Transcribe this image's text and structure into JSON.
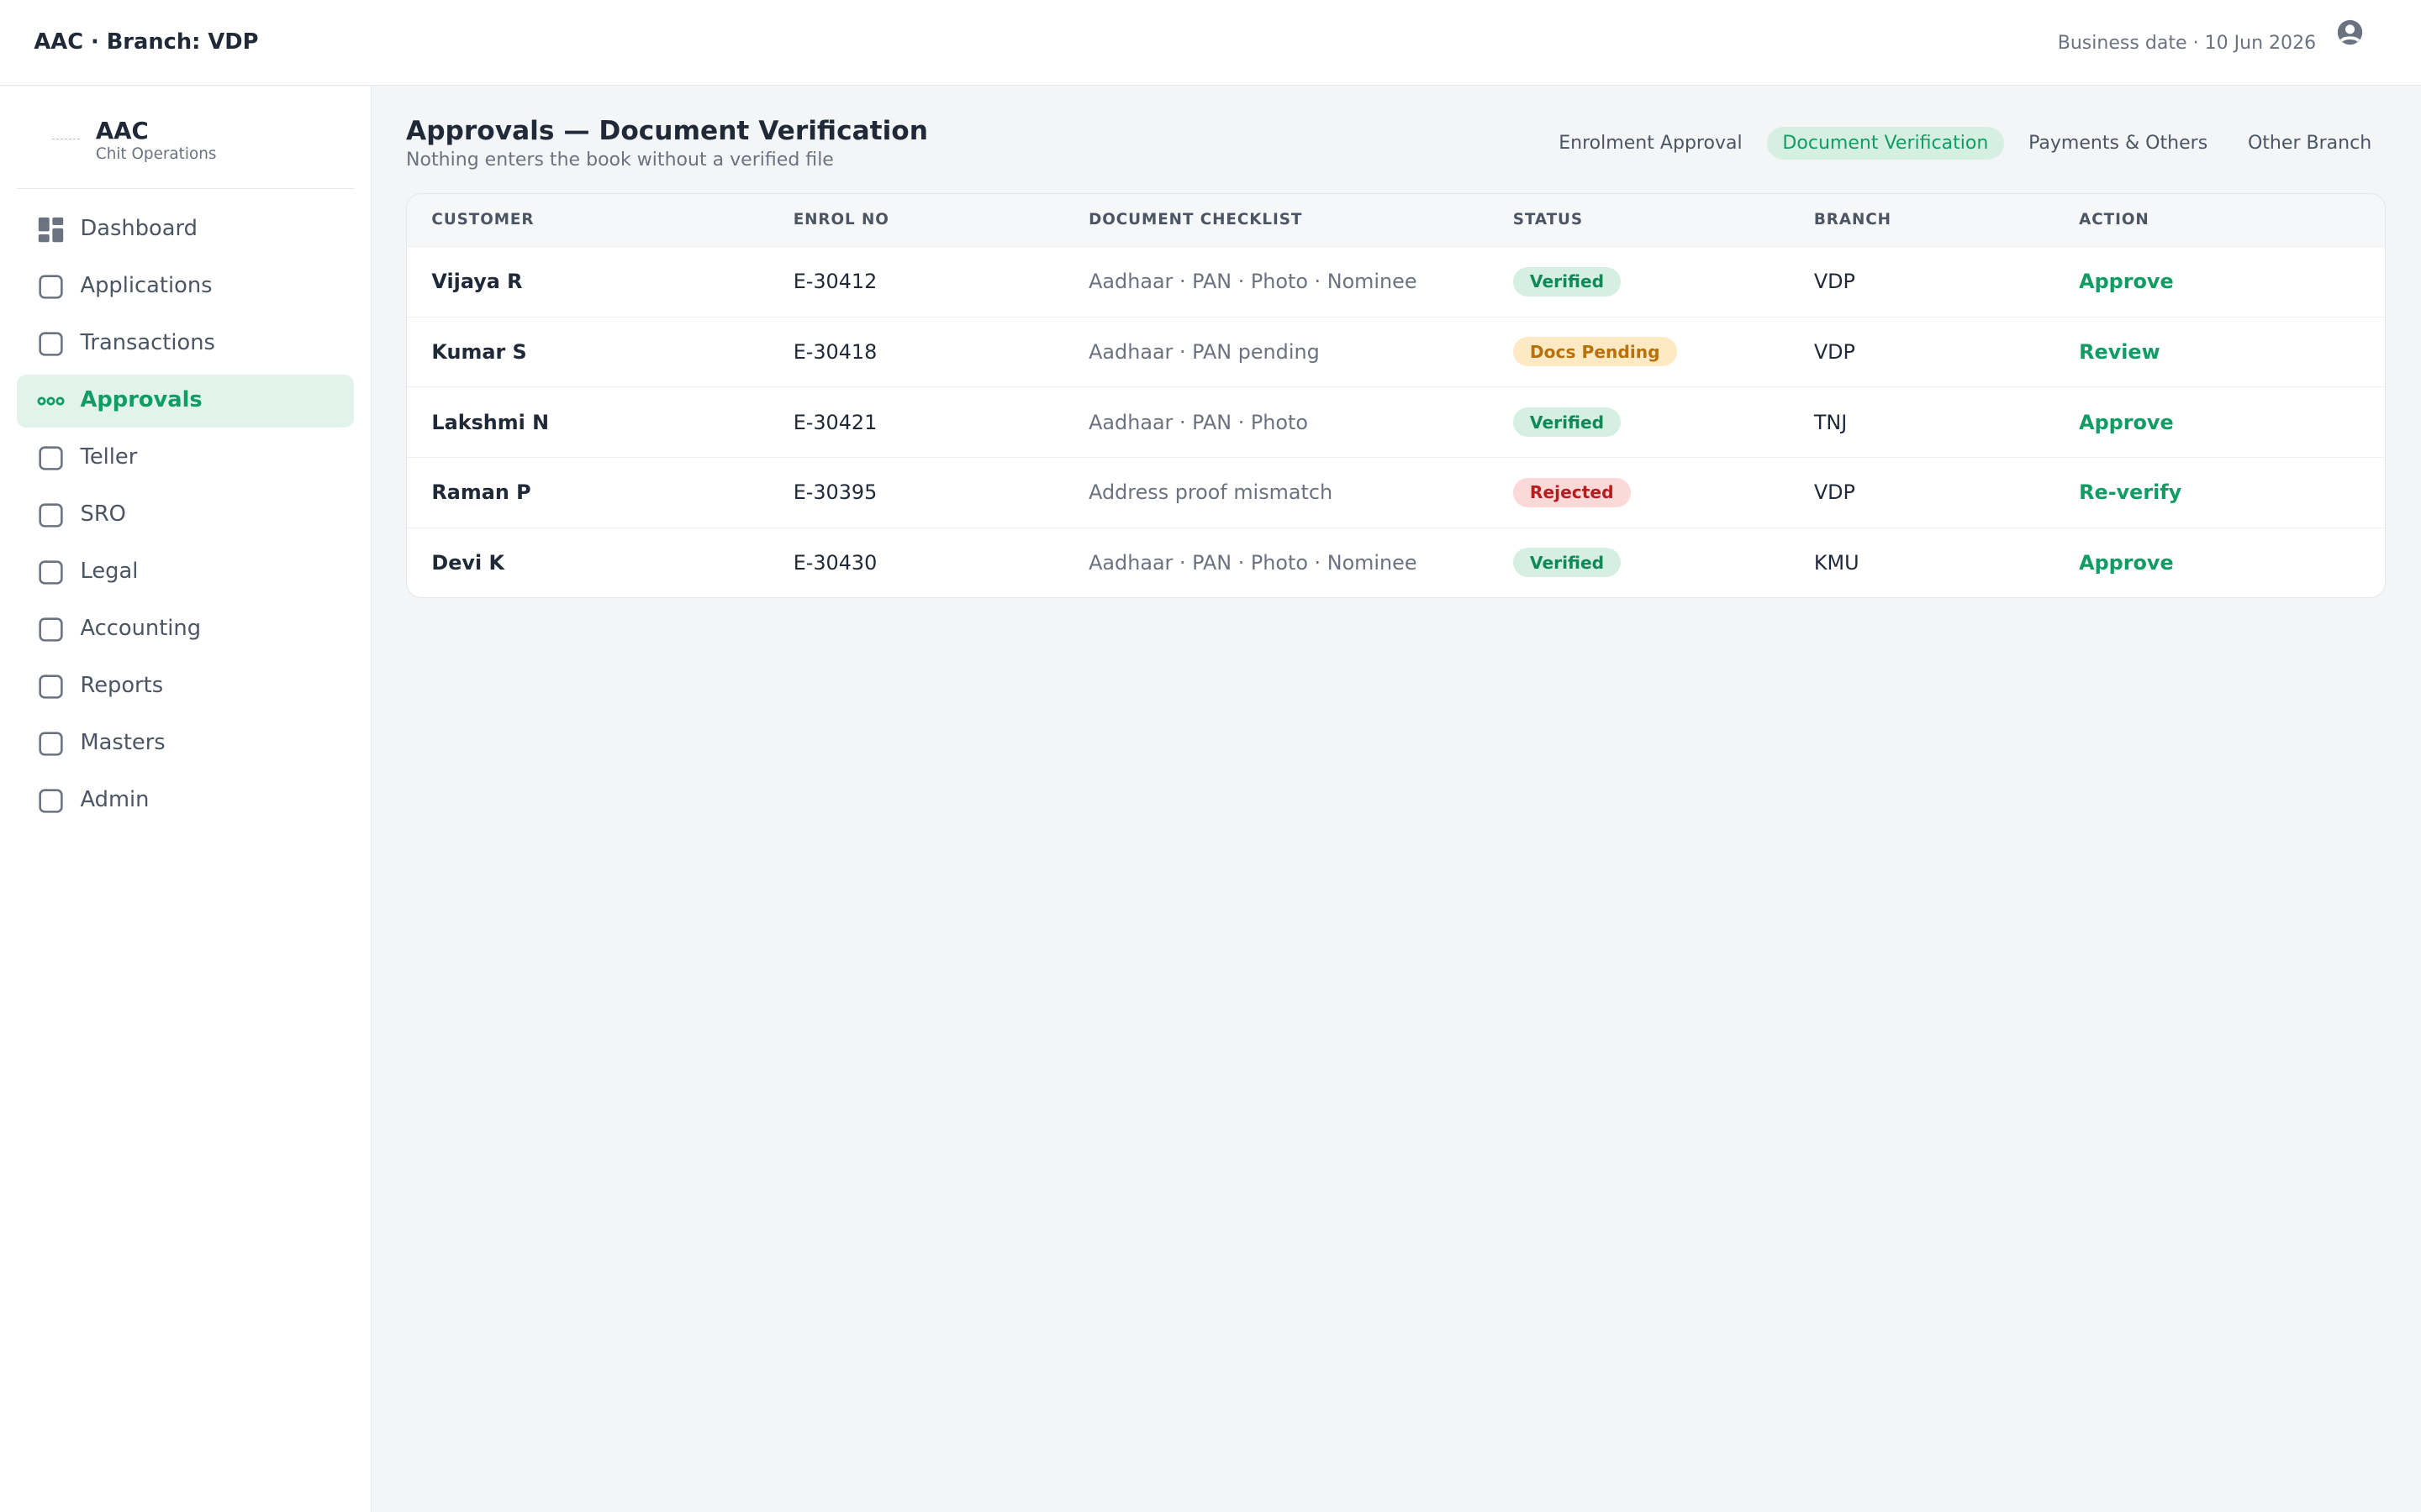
{
  "header": {
    "title": "AAC · Branch: VDP",
    "business_date": "Business date · 10 Jun 2026"
  },
  "sidebar": {
    "brand": "AAC",
    "brand_sub": "Chit Operations",
    "nav": [
      "Dashboard",
      "Applications",
      "Transactions",
      "Approvals",
      "Teller",
      "SRO",
      "Legal",
      "Accounting",
      "Reports",
      "Masters",
      "Admin"
    ]
  },
  "page": {
    "title": "Approvals — Document Verification",
    "subtitle": "Nothing enters the book without a verified file",
    "tabs": [
      "Enrolment Approval",
      "Document Verification",
      "Payments & Others",
      "Other Branch"
    ]
  },
  "table": {
    "columns": [
      "CUSTOMER",
      "ENROL NO",
      "DOCUMENT CHECKLIST",
      "STATUS",
      "BRANCH",
      "ACTION"
    ],
    "rows": [
      [
        "Vijaya R",
        "E-30412",
        "Aadhaar · PAN · Photo · Nominee",
        "Verified",
        "VDP",
        "Approve"
      ],
      [
        "Kumar S",
        "E-30418",
        "Aadhaar · PAN pending",
        "Docs Pending",
        "VDP",
        "Review"
      ],
      [
        "Lakshmi N",
        "E-30421",
        "Aadhaar · PAN · Photo",
        "Verified",
        "TNJ",
        "Approve"
      ],
      [
        "Raman P",
        "E-30395",
        "Address proof mismatch",
        "Rejected",
        "VDP",
        "Re-verify"
      ],
      [
        "Devi K",
        "E-30430",
        "Aadhaar · PAN · Photo · Nominee",
        "Verified",
        "KMU",
        "Approve"
      ]
    ]
  }
}
